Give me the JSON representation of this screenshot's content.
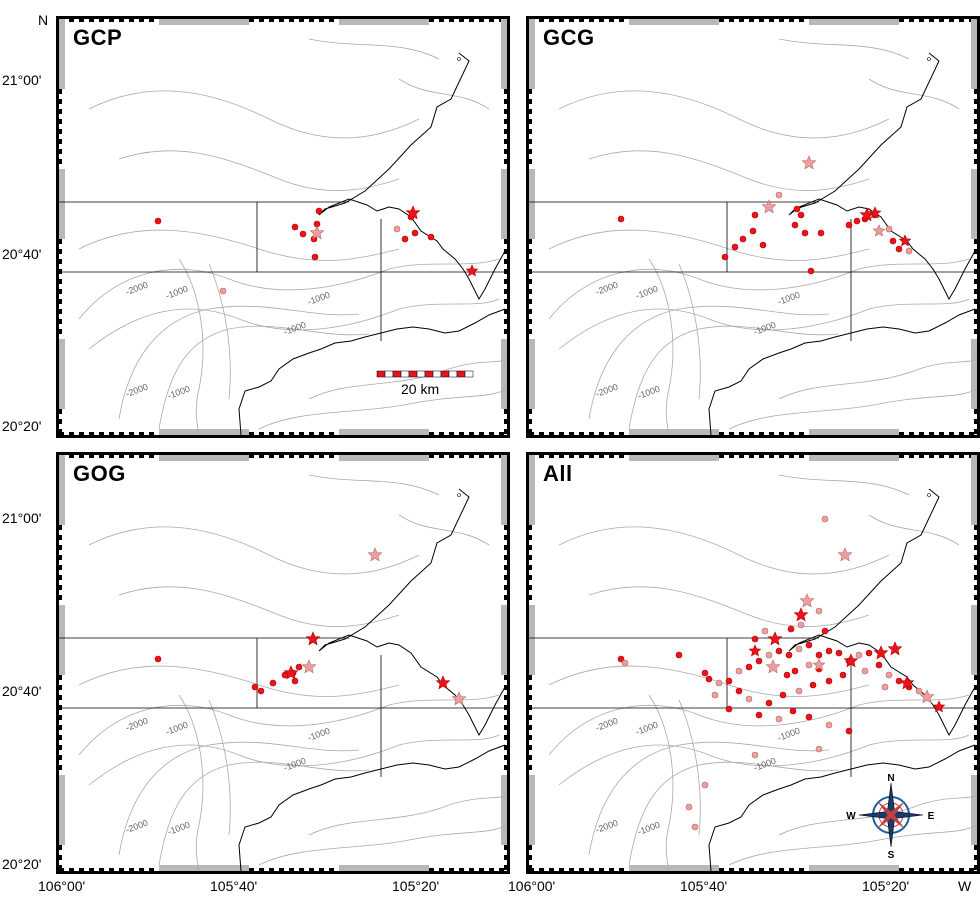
{
  "compass_letter": "N",
  "west_letter": "W",
  "y_ticks": [
    "21°00'",
    "20°40'",
    "20°20'"
  ],
  "x_ticks": [
    "106°00'",
    "105°40'",
    "105°20'"
  ],
  "panels": [
    {
      "title": "GCP"
    },
    {
      "title": "GCG"
    },
    {
      "title": "GOG"
    },
    {
      "title": "All"
    }
  ],
  "contour_labels": [
    "-2000",
    "-1000",
    "-1000",
    "-1000",
    "-2000",
    "-1000"
  ],
  "scale_bar_label": "20 km",
  "compass_rose": {
    "n": "N",
    "s": "S",
    "e": "E",
    "w": "W"
  },
  "colors": {
    "marker_red": "#e8141c",
    "marker_pink": "#e8a0a0",
    "contour": "#aaaaaa",
    "coast": "#000000"
  }
}
